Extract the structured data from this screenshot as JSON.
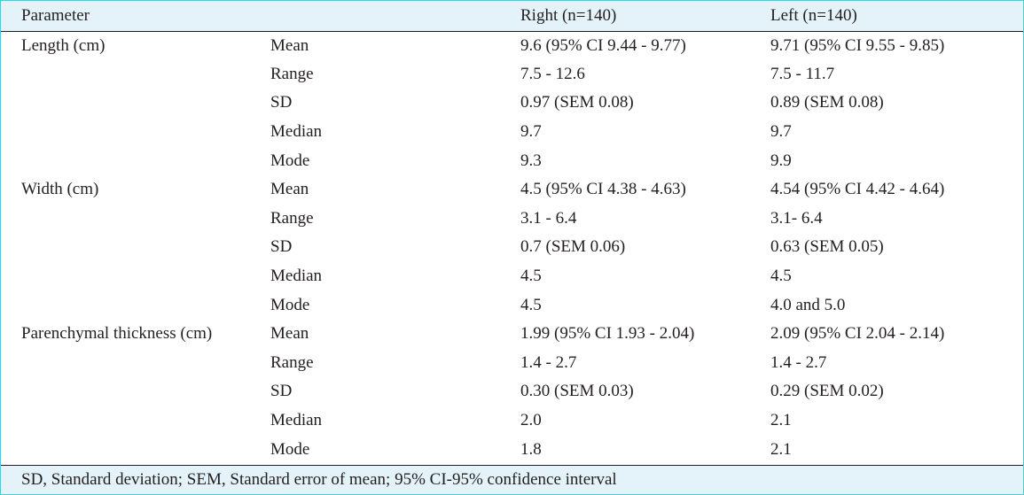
{
  "header": {
    "parameter": "Parameter",
    "stat": "",
    "right": "Right (n=140)",
    "left": "Left (n=140)"
  },
  "rows": [
    {
      "param": "Length (cm)",
      "stat": "Mean",
      "right": "9.6 (95% CI 9.44 - 9.77)",
      "left": "9.71 (95% CI 9.55 - 9.85)"
    },
    {
      "param": "",
      "stat": "Range",
      "right": "7.5 - 12.6",
      "left": " 7.5 - 11.7"
    },
    {
      "param": "",
      "stat": "SD",
      "right": "0.97 (SEM 0.08)",
      "left": "0.89 (SEM 0.08)"
    },
    {
      "param": "",
      "stat": "Median",
      "right": "9.7",
      "left": "9.7"
    },
    {
      "param": "",
      "stat": "Mode",
      "right": "9.3",
      "left": "9.9"
    },
    {
      "param": "Width (cm)",
      "stat": "Mean",
      "right": "4.5 (95% CI 4.38 - 4.63)",
      "left": "4.54 (95% CI 4.42 - 4.64)"
    },
    {
      "param": "",
      "stat": "Range",
      "right": "3.1 - 6.4",
      "left": "3.1- 6.4"
    },
    {
      "param": "",
      "stat": "SD",
      "right": "0.7 (SEM 0.06)",
      "left": "0.63 (SEM 0.05)"
    },
    {
      "param": "",
      "stat": "Median",
      "right": "4.5",
      "left": "4.5"
    },
    {
      "param": "",
      "stat": "Mode",
      "right": "4.5",
      "left": "4.0 and 5.0"
    },
    {
      "param": "Parenchymal thickness (cm)",
      "stat": "Mean",
      "right": "1.99 (95% CI 1.93 - 2.04)",
      "left": "2.09 (95% CI 2.04 - 2.14)"
    },
    {
      "param": "",
      "stat": "Range",
      "right": "1.4 - 2.7",
      "left": "1.4 - 2.7"
    },
    {
      "param": "",
      "stat": "SD",
      "right": "0.30 (SEM 0.03)",
      "left": "0.29 (SEM 0.02)"
    },
    {
      "param": "",
      "stat": "Median",
      "right": "2.0",
      "left": "2.1"
    },
    {
      "param": "",
      "stat": "Mode",
      "right": "1.8",
      "left": "2.1"
    }
  ],
  "footnote": "SD, Standard deviation; SEM, Standard error of mean; 95% CI-95% confidence interval"
}
